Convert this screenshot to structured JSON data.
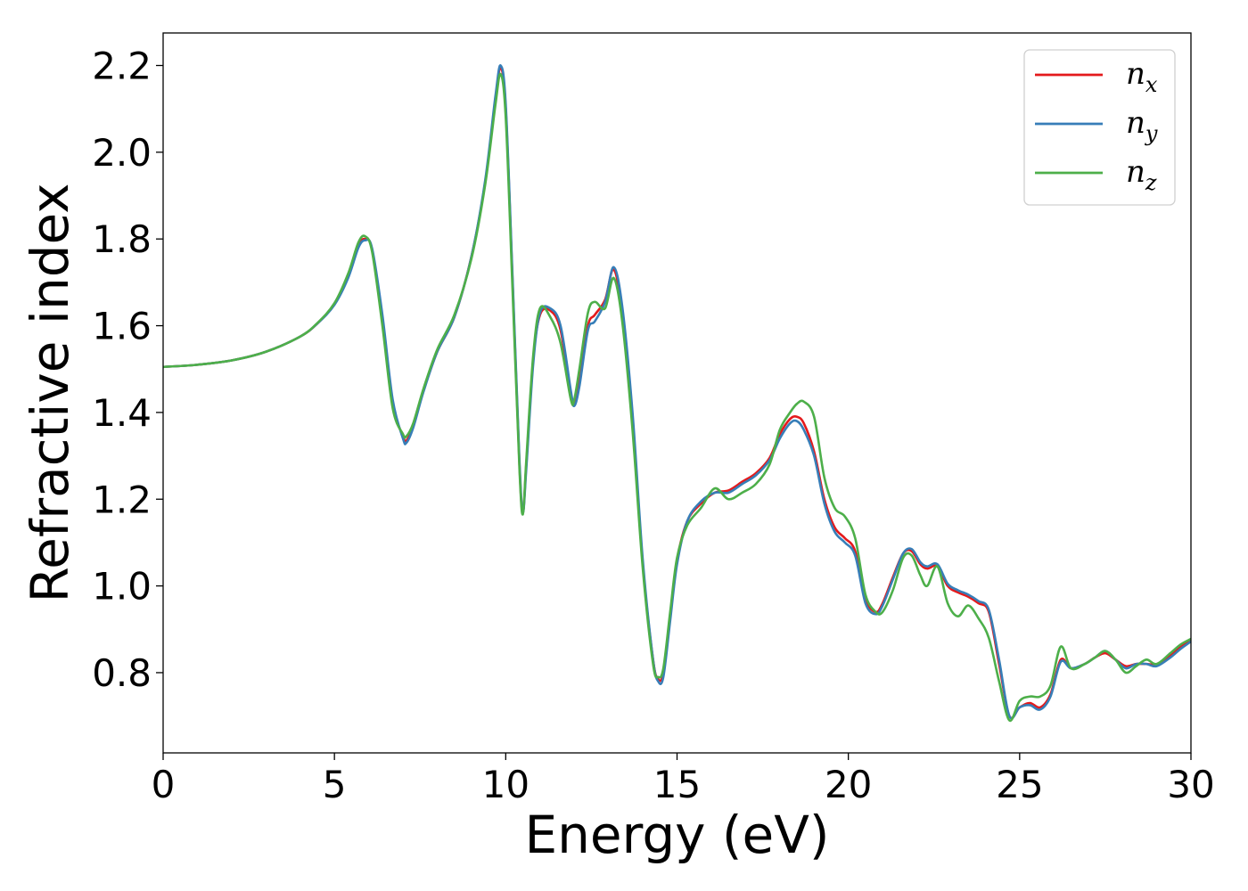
{
  "chart_data": {
    "type": "line",
    "xlabel": "Energy (eV)",
    "ylabel": "Refractive index",
    "xlim": [
      0,
      30
    ],
    "ylim": [
      0.615,
      2.275
    ],
    "xticks": [
      0,
      5,
      10,
      15,
      20,
      25,
      30
    ],
    "xtick_labels": [
      "0",
      "5",
      "10",
      "15",
      "20",
      "25",
      "30"
    ],
    "yticks": [
      0.8,
      1.0,
      1.2,
      1.4,
      1.6,
      1.8,
      2.0,
      2.2
    ],
    "ytick_labels": [
      "0.8",
      "1.0",
      "1.2",
      "1.4",
      "1.6",
      "1.8",
      "2.0",
      "2.2"
    ],
    "grid": false,
    "legend_position": "top-right",
    "series": [
      {
        "name": "n_x",
        "legend_base": "n",
        "legend_sub": "x",
        "color": "#e41a1c",
        "x": [
          0,
          1,
          2,
          3,
          4,
          4.5,
          5,
          5.4,
          5.7,
          5.9,
          6.1,
          6.4,
          6.7,
          7.0,
          7.1,
          7.3,
          7.6,
          8.0,
          8.5,
          9.0,
          9.4,
          9.7,
          9.85,
          10.0,
          10.2,
          10.4,
          10.5,
          10.6,
          10.8,
          11.0,
          11.3,
          11.6,
          11.9,
          12.0,
          12.15,
          12.4,
          12.6,
          12.9,
          13.15,
          13.4,
          13.7,
          14.0,
          14.3,
          14.45,
          14.6,
          14.8,
          15.0,
          15.3,
          15.7,
          16.1,
          16.5,
          16.9,
          17.3,
          17.7,
          18.0,
          18.3,
          18.5,
          18.7,
          19.0,
          19.3,
          19.6,
          19.9,
          20.2,
          20.5,
          20.8,
          21.0,
          21.3,
          21.6,
          21.85,
          22.1,
          22.3,
          22.6,
          22.9,
          23.2,
          23.5,
          23.8,
          24.1,
          24.4,
          24.7,
          25.0,
          25.3,
          25.6,
          25.9,
          26.2,
          26.5,
          26.9,
          27.2,
          27.5,
          27.8,
          28.1,
          28.4,
          28.7,
          29.0,
          29.4,
          29.7,
          30.0
        ],
        "y": [
          1.505,
          1.51,
          1.52,
          1.54,
          1.575,
          1.605,
          1.65,
          1.715,
          1.785,
          1.8,
          1.775,
          1.61,
          1.42,
          1.345,
          1.335,
          1.37,
          1.45,
          1.54,
          1.62,
          1.76,
          1.93,
          2.12,
          2.195,
          2.1,
          1.7,
          1.28,
          1.17,
          1.28,
          1.52,
          1.625,
          1.635,
          1.59,
          1.44,
          1.42,
          1.47,
          1.6,
          1.625,
          1.66,
          1.73,
          1.63,
          1.38,
          1.05,
          0.83,
          0.785,
          0.8,
          0.93,
          1.06,
          1.15,
          1.19,
          1.215,
          1.22,
          1.24,
          1.26,
          1.295,
          1.35,
          1.385,
          1.39,
          1.375,
          1.31,
          1.2,
          1.135,
          1.11,
          1.08,
          0.97,
          0.94,
          0.96,
          1.02,
          1.075,
          1.08,
          1.05,
          1.04,
          1.045,
          1.0,
          0.985,
          0.975,
          0.96,
          0.94,
          0.82,
          0.7,
          0.72,
          0.73,
          0.72,
          0.75,
          0.83,
          0.81,
          0.82,
          0.835,
          0.845,
          0.83,
          0.815,
          0.82,
          0.82,
          0.82,
          0.84,
          0.86,
          0.875
        ]
      },
      {
        "name": "n_y",
        "legend_base": "n",
        "legend_sub": "y",
        "color": "#377eb8",
        "x": [
          0,
          1,
          2,
          3,
          4,
          4.5,
          5,
          5.4,
          5.7,
          5.9,
          6.1,
          6.4,
          6.7,
          7.0,
          7.1,
          7.3,
          7.6,
          8.0,
          8.5,
          9.0,
          9.4,
          9.7,
          9.85,
          10.0,
          10.2,
          10.4,
          10.5,
          10.6,
          10.8,
          11.0,
          11.3,
          11.6,
          11.9,
          12.0,
          12.15,
          12.4,
          12.6,
          12.9,
          13.15,
          13.4,
          13.7,
          14.0,
          14.3,
          14.45,
          14.6,
          14.8,
          15.0,
          15.3,
          15.7,
          16.1,
          16.5,
          16.9,
          17.3,
          17.7,
          18.0,
          18.3,
          18.5,
          18.7,
          19.0,
          19.3,
          19.6,
          19.9,
          20.2,
          20.5,
          20.8,
          21.0,
          21.3,
          21.6,
          21.85,
          22.1,
          22.3,
          22.6,
          22.9,
          23.2,
          23.5,
          23.8,
          24.1,
          24.4,
          24.7,
          25.0,
          25.3,
          25.6,
          25.9,
          26.2,
          26.5,
          26.9,
          27.2,
          27.5,
          27.8,
          28.1,
          28.4,
          28.7,
          29.0,
          29.4,
          29.7,
          30.0
        ],
        "y": [
          1.505,
          1.51,
          1.52,
          1.54,
          1.575,
          1.605,
          1.648,
          1.71,
          1.78,
          1.797,
          1.778,
          1.625,
          1.43,
          1.34,
          1.33,
          1.365,
          1.448,
          1.54,
          1.62,
          1.76,
          1.935,
          2.13,
          2.2,
          2.11,
          1.71,
          1.29,
          1.17,
          1.27,
          1.51,
          1.63,
          1.64,
          1.6,
          1.45,
          1.415,
          1.46,
          1.59,
          1.61,
          1.655,
          1.735,
          1.645,
          1.4,
          1.06,
          0.83,
          0.78,
          0.79,
          0.92,
          1.05,
          1.15,
          1.195,
          1.215,
          1.215,
          1.235,
          1.255,
          1.29,
          1.34,
          1.375,
          1.38,
          1.36,
          1.3,
          1.19,
          1.125,
          1.1,
          1.07,
          0.96,
          0.935,
          0.955,
          1.015,
          1.075,
          1.085,
          1.055,
          1.045,
          1.05,
          1.005,
          0.99,
          0.98,
          0.965,
          0.945,
          0.83,
          0.7,
          0.72,
          0.725,
          0.715,
          0.745,
          0.825,
          0.81,
          0.82,
          0.835,
          0.85,
          0.83,
          0.81,
          0.82,
          0.82,
          0.815,
          0.835,
          0.855,
          0.872
        ]
      },
      {
        "name": "n_z",
        "legend_base": "n",
        "legend_sub": "z",
        "color": "#4daf4a",
        "x": [
          0,
          1,
          2,
          3,
          4,
          4.5,
          5,
          5.4,
          5.7,
          5.9,
          6.1,
          6.4,
          6.7,
          7.0,
          7.1,
          7.3,
          7.6,
          8.0,
          8.5,
          9.0,
          9.4,
          9.7,
          9.85,
          10.0,
          10.2,
          10.4,
          10.5,
          10.6,
          10.8,
          11.0,
          11.3,
          11.6,
          11.9,
          12.0,
          12.15,
          12.4,
          12.6,
          12.9,
          13.15,
          13.4,
          13.7,
          14.0,
          14.3,
          14.45,
          14.6,
          14.8,
          15.0,
          15.3,
          15.7,
          16.1,
          16.5,
          16.9,
          17.3,
          17.7,
          18.0,
          18.3,
          18.5,
          18.7,
          19.0,
          19.3,
          19.6,
          19.9,
          20.2,
          20.5,
          20.8,
          21.0,
          21.3,
          21.6,
          21.85,
          22.1,
          22.3,
          22.6,
          22.9,
          23.2,
          23.5,
          23.8,
          24.1,
          24.4,
          24.7,
          25.0,
          25.3,
          25.6,
          25.9,
          26.2,
          26.5,
          26.9,
          27.2,
          27.5,
          27.8,
          28.1,
          28.4,
          28.7,
          29.0,
          29.4,
          29.7,
          30.0
        ],
        "y": [
          1.505,
          1.51,
          1.52,
          1.54,
          1.575,
          1.606,
          1.652,
          1.72,
          1.792,
          1.806,
          1.77,
          1.6,
          1.41,
          1.35,
          1.345,
          1.375,
          1.455,
          1.545,
          1.625,
          1.755,
          1.925,
          2.11,
          2.18,
          2.08,
          1.68,
          1.27,
          1.165,
          1.29,
          1.53,
          1.64,
          1.62,
          1.56,
          1.43,
          1.43,
          1.5,
          1.63,
          1.655,
          1.64,
          1.71,
          1.61,
          1.36,
          1.04,
          0.82,
          0.79,
          0.81,
          0.94,
          1.065,
          1.14,
          1.18,
          1.225,
          1.2,
          1.215,
          1.235,
          1.28,
          1.36,
          1.4,
          1.42,
          1.425,
          1.39,
          1.25,
          1.18,
          1.16,
          1.11,
          0.98,
          0.94,
          0.94,
          0.99,
          1.065,
          1.07,
          1.025,
          1.0,
          1.045,
          0.96,
          0.93,
          0.955,
          0.925,
          0.88,
          0.78,
          0.69,
          0.735,
          0.745,
          0.745,
          0.77,
          0.86,
          0.81,
          0.82,
          0.835,
          0.85,
          0.83,
          0.8,
          0.815,
          0.83,
          0.82,
          0.845,
          0.865,
          0.878
        ]
      }
    ]
  }
}
